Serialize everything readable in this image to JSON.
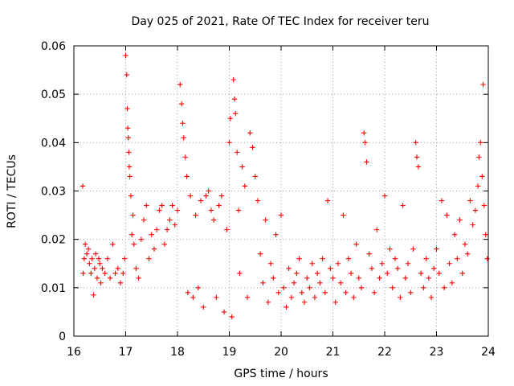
{
  "chart_data": {
    "type": "scatter",
    "title": "Day 025 of 2021, Rate Of TEC Index for receiver teru",
    "xlabel": "GPS time / hours",
    "ylabel": "ROTI / TECUs",
    "xlim": [
      16,
      24
    ],
    "ylim": [
      0,
      0.06
    ],
    "xticks": [
      "16",
      "17",
      "18",
      "19",
      "20",
      "21",
      "22",
      "23",
      "24"
    ],
    "yticks": [
      "0",
      "0.01",
      "0.02",
      "0.03",
      "0.04",
      "0.05",
      "0.06"
    ],
    "grid": true,
    "marker": "+",
    "color": "#ff0000",
    "series": [
      {
        "name": "ROTI",
        "x": [
          16.17,
          16.18,
          16.2,
          16.22,
          16.25,
          16.28,
          16.3,
          16.33,
          16.35,
          16.38,
          16.4,
          16.42,
          16.45,
          16.48,
          16.5,
          16.52,
          16.55,
          16.6,
          16.65,
          16.7,
          16.75,
          16.8,
          16.85,
          16.9,
          16.95,
          16.98,
          17.0,
          17.02,
          17.03,
          17.04,
          17.05,
          17.06,
          17.07,
          17.08,
          17.1,
          17.12,
          17.14,
          17.16,
          17.2,
          17.25,
          17.3,
          17.35,
          17.4,
          17.45,
          17.5,
          17.55,
          17.6,
          17.65,
          17.7,
          17.75,
          17.8,
          17.85,
          17.9,
          17.95,
          18.0,
          18.05,
          18.08,
          18.1,
          18.12,
          18.15,
          18.18,
          18.2,
          18.25,
          18.3,
          18.35,
          18.4,
          18.45,
          18.5,
          18.55,
          18.6,
          18.65,
          18.7,
          18.75,
          18.8,
          18.85,
          18.9,
          18.95,
          19.0,
          19.02,
          19.05,
          19.08,
          19.1,
          19.12,
          19.15,
          19.18,
          19.2,
          19.25,
          19.3,
          19.35,
          19.4,
          19.45,
          19.5,
          19.55,
          19.6,
          19.65,
          19.7,
          19.75,
          19.8,
          19.85,
          19.9,
          19.95,
          20.0,
          20.05,
          20.1,
          20.15,
          20.2,
          20.25,
          20.3,
          20.35,
          20.4,
          20.45,
          20.5,
          20.55,
          20.6,
          20.65,
          20.7,
          20.75,
          20.8,
          20.85,
          20.9,
          20.95,
          21.0,
          21.05,
          21.1,
          21.15,
          21.2,
          21.25,
          21.3,
          21.35,
          21.4,
          21.45,
          21.5,
          21.55,
          21.6,
          21.62,
          21.65,
          21.7,
          21.75,
          21.8,
          21.85,
          21.9,
          21.95,
          22.0,
          22.05,
          22.1,
          22.15,
          22.2,
          22.25,
          22.3,
          22.35,
          22.4,
          22.45,
          22.5,
          22.55,
          22.6,
          22.62,
          22.65,
          22.7,
          22.75,
          22.8,
          22.85,
          22.9,
          22.95,
          23.0,
          23.05,
          23.1,
          23.15,
          23.2,
          23.25,
          23.3,
          23.35,
          23.4,
          23.45,
          23.5,
          23.55,
          23.6,
          23.65,
          23.7,
          23.75,
          23.8,
          23.82,
          23.85,
          23.88,
          23.9,
          23.92,
          23.95,
          23.98
        ],
        "y": [
          0.031,
          0.013,
          0.016,
          0.019,
          0.017,
          0.018,
          0.015,
          0.013,
          0.016,
          0.0085,
          0.014,
          0.017,
          0.012,
          0.016,
          0.015,
          0.011,
          0.014,
          0.013,
          0.016,
          0.012,
          0.019,
          0.013,
          0.014,
          0.011,
          0.013,
          0.016,
          0.058,
          0.054,
          0.047,
          0.043,
          0.041,
          0.038,
          0.035,
          0.033,
          0.029,
          0.021,
          0.025,
          0.019,
          0.014,
          0.012,
          0.02,
          0.024,
          0.027,
          0.016,
          0.021,
          0.018,
          0.022,
          0.026,
          0.027,
          0.019,
          0.022,
          0.024,
          0.027,
          0.023,
          0.026,
          0.052,
          0.048,
          0.044,
          0.041,
          0.037,
          0.033,
          0.009,
          0.029,
          0.008,
          0.025,
          0.01,
          0.028,
          0.006,
          0.029,
          0.03,
          0.026,
          0.024,
          0.008,
          0.027,
          0.029,
          0.005,
          0.022,
          0.04,
          0.045,
          0.004,
          0.053,
          0.049,
          0.046,
          0.038,
          0.026,
          0.013,
          0.035,
          0.031,
          0.008,
          0.042,
          0.039,
          0.033,
          0.028,
          0.017,
          0.011,
          0.024,
          0.007,
          0.015,
          0.012,
          0.021,
          0.009,
          0.025,
          0.01,
          0.006,
          0.014,
          0.008,
          0.011,
          0.013,
          0.016,
          0.009,
          0.007,
          0.012,
          0.01,
          0.015,
          0.008,
          0.013,
          0.011,
          0.016,
          0.009,
          0.028,
          0.014,
          0.012,
          0.007,
          0.015,
          0.011,
          0.025,
          0.009,
          0.016,
          0.013,
          0.008,
          0.019,
          0.012,
          0.01,
          0.042,
          0.04,
          0.036,
          0.017,
          0.014,
          0.009,
          0.022,
          0.012,
          0.015,
          0.029,
          0.013,
          0.018,
          0.01,
          0.016,
          0.014,
          0.008,
          0.027,
          0.012,
          0.015,
          0.009,
          0.018,
          0.04,
          0.037,
          0.035,
          0.013,
          0.01,
          0.016,
          0.012,
          0.008,
          0.014,
          0.018,
          0.013,
          0.028,
          0.01,
          0.025,
          0.015,
          0.011,
          0.021,
          0.016,
          0.024,
          0.013,
          0.019,
          0.017,
          0.028,
          0.023,
          0.026,
          0.031,
          0.037,
          0.04,
          0.033,
          0.052,
          0.027,
          0.021,
          0.016
        ]
      }
    ]
  }
}
